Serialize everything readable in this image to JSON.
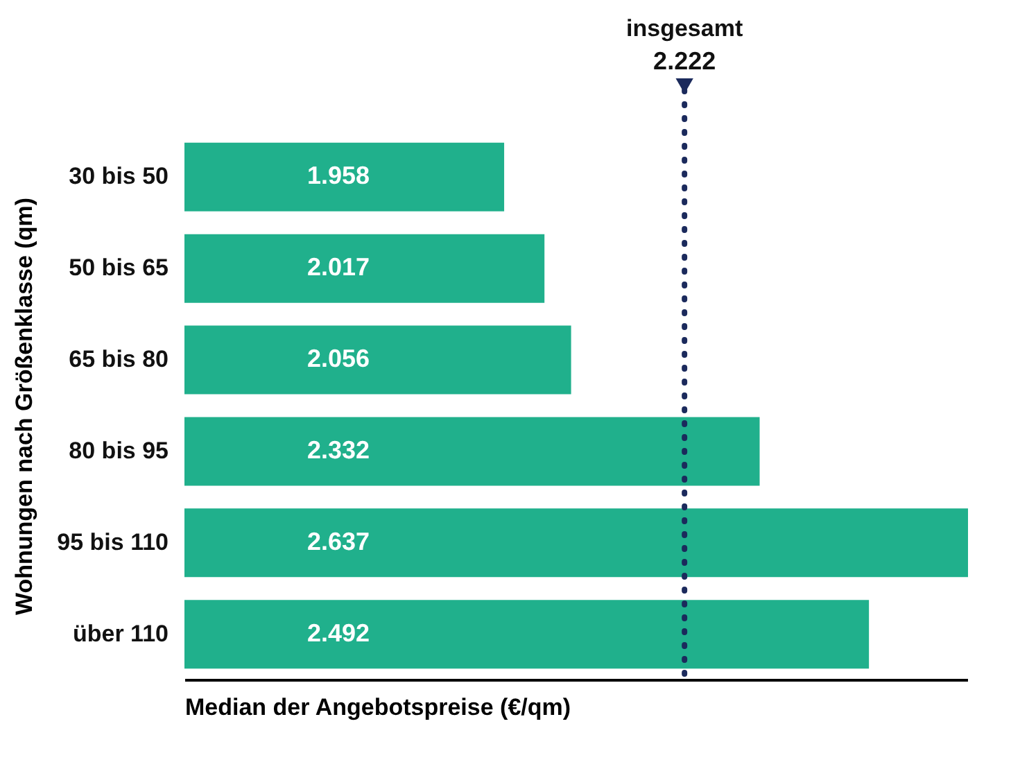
{
  "chart_data": {
    "type": "bar",
    "orientation": "horizontal",
    "xlabel": "Median der Angebotspreise (€/qm)",
    "ylabel": "Wohnungen nach Größenklasse (qm)",
    "categories": [
      "30 bis 50",
      "50 bis 65",
      "65 bis 80",
      "80 bis 95",
      "95 bis 110",
      "über 110"
    ],
    "values": [
      1.958,
      2.017,
      2.056,
      2.332,
      2.637,
      2.492
    ],
    "value_labels": [
      "1.958",
      "2.017",
      "2.056",
      "2.332",
      "2.637",
      "2.492"
    ],
    "color": "#20b08c",
    "xlim": [
      1.49,
      2.637
    ],
    "tick_labels": "y",
    "grid": false,
    "ref_lines": [
      {
        "axis": "x",
        "value": 2.222,
        "label": "insgesamt",
        "color": "#1b2a5c",
        "line_style": "dotted"
      }
    ],
    "annotations": [
      "2.222"
    ]
  }
}
